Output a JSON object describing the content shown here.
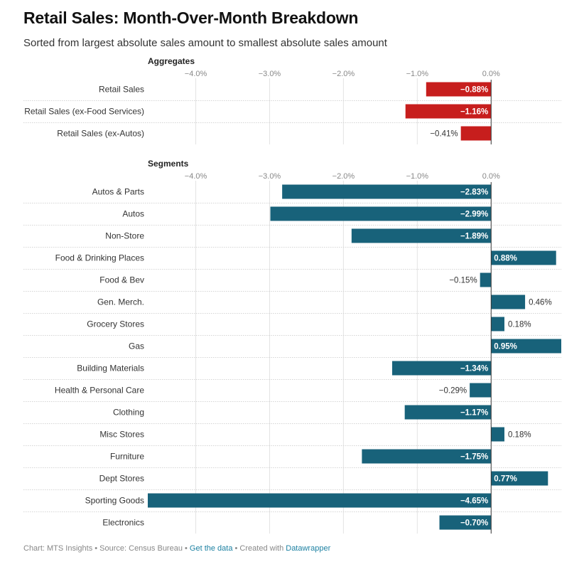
{
  "title": "Retail Sales: Month-Over-Month Breakdown",
  "subtitle": "Sorted from largest absolute sales amount to smallest absolute sales amount",
  "colors": {
    "negative_aggregate": "#c71e1d",
    "segment": "#18627a",
    "grid": "#e3e3e3",
    "row_sep": "#d5d5d5",
    "axis_zero": "#333333"
  },
  "chart_data": [
    {
      "type": "bar",
      "orientation": "horizontal",
      "title": "Aggregates",
      "ticks": [
        "−4.0%",
        "−3.0%",
        "−2.0%",
        "−1.0%",
        "0.0%"
      ],
      "tick_values": [
        -4,
        -3,
        -2,
        -1,
        0
      ],
      "xlim": [
        -4.65,
        0.95
      ],
      "categories": [
        "Retail Sales",
        "Retail Sales (ex-Food Services)",
        "Retail Sales (ex-Autos)"
      ],
      "values": [
        -0.88,
        -1.16,
        -0.41
      ],
      "labels": [
        "−0.88%",
        "−1.16%",
        "−0.41%"
      ]
    },
    {
      "type": "bar",
      "orientation": "horizontal",
      "title": "Segments",
      "ticks": [
        "−4.0%",
        "−3.0%",
        "−2.0%",
        "−1.0%",
        "0.0%"
      ],
      "tick_values": [
        -4,
        -3,
        -2,
        -1,
        0
      ],
      "xlim": [
        -4.65,
        0.95
      ],
      "categories": [
        "Autos & Parts",
        "Autos",
        "Non-Store",
        "Food & Drinking Places",
        "Food & Bev",
        "Gen. Merch.",
        "Grocery Stores",
        "Gas",
        "Building Materials",
        "Health & Personal Care",
        "Clothing",
        "Misc Stores",
        "Furniture",
        "Dept Stores",
        "Sporting Goods",
        "Electronics"
      ],
      "values": [
        -2.83,
        -2.99,
        -1.89,
        0.88,
        -0.15,
        0.46,
        0.18,
        0.95,
        -1.34,
        -0.29,
        -1.17,
        0.18,
        -1.75,
        0.77,
        -4.65,
        -0.7
      ],
      "labels": [
        "−2.83%",
        "−2.99%",
        "−1.89%",
        "0.88%",
        "−0.15%",
        "0.46%",
        "0.18%",
        "0.95%",
        "−1.34%",
        "−0.29%",
        "−1.17%",
        "0.18%",
        "−1.75%",
        "0.77%",
        "−4.65%",
        "−0.70%"
      ]
    }
  ],
  "footer": {
    "prefix": "Chart: MTS Insights • Source: Census Bureau • ",
    "get_data": "Get the data",
    "middle": " • Created with ",
    "tool": "Datawrapper"
  }
}
